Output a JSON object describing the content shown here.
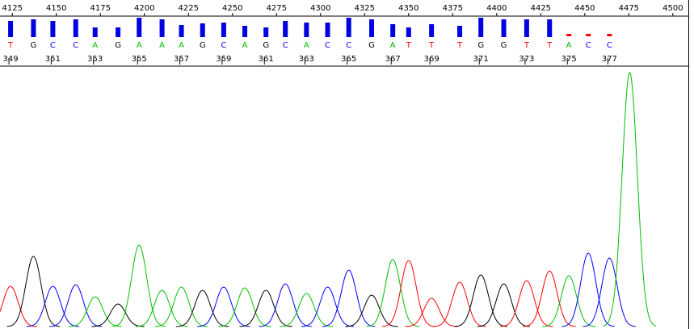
{
  "chart_data": {
    "type": "chromatogram",
    "xlim": [
      4118,
      4512
    ],
    "xticks": [
      4125,
      4150,
      4175,
      4200,
      4225,
      4250,
      4275,
      4300,
      4325,
      4350,
      4375,
      4400,
      4425,
      4450,
      4475,
      4500
    ],
    "trace_ylim": [
      0,
      320
    ],
    "base_colors": {
      "A": "#00c000",
      "C": "#0000ff",
      "G": "#000000",
      "T": "#ff0000"
    },
    "quality_color": "#0000e0",
    "low_quality_color": "#ff0000",
    "quality_threshold": 10,
    "sequence": [
      "T",
      "G",
      "C",
      "C",
      "A",
      "G",
      "A",
      "A",
      "A",
      "G",
      "C",
      "A",
      "G",
      "C",
      "A",
      "C",
      "C",
      "G",
      "A",
      "T",
      "T",
      "T",
      "G",
      "G",
      "T",
      "T",
      "A",
      "C",
      "C"
    ],
    "base_numbers": [
      349,
      null,
      351,
      null,
      353,
      null,
      355,
      null,
      357,
      null,
      359,
      null,
      361,
      null,
      363,
      null,
      365,
      null,
      367,
      null,
      369,
      null,
      371,
      null,
      373,
      null,
      375,
      null,
      377
    ],
    "quality": [
      20,
      22,
      20,
      22,
      12,
      12,
      24,
      22,
      15,
      17,
      18,
      14,
      12,
      20,
      18,
      18,
      24,
      22,
      16,
      12,
      16,
      14,
      24,
      22,
      22,
      22,
      2,
      2,
      2
    ],
    "peak_x": [
      4124,
      4137,
      4148,
      4161,
      4172,
      4185,
      4197,
      4210,
      4221,
      4233,
      4245,
      4257,
      4269,
      4280,
      4292,
      4304,
      4316,
      4329,
      4341,
      4350,
      4363,
      4379,
      4391,
      4404,
      4417,
      4430,
      4441,
      4452,
      4464
    ],
    "peak_height": [
      50,
      87,
      50,
      52,
      37,
      28,
      101,
      45,
      49,
      45,
      49,
      48,
      45,
      53,
      41,
      49,
      70,
      39,
      83,
      82,
      35,
      55,
      64,
      53,
      57,
      69,
      63,
      91,
      85
    ],
    "extra_peaks": [
      {
        "color": "#00c000",
        "x": 4475.5,
        "height": 315
      }
    ]
  }
}
